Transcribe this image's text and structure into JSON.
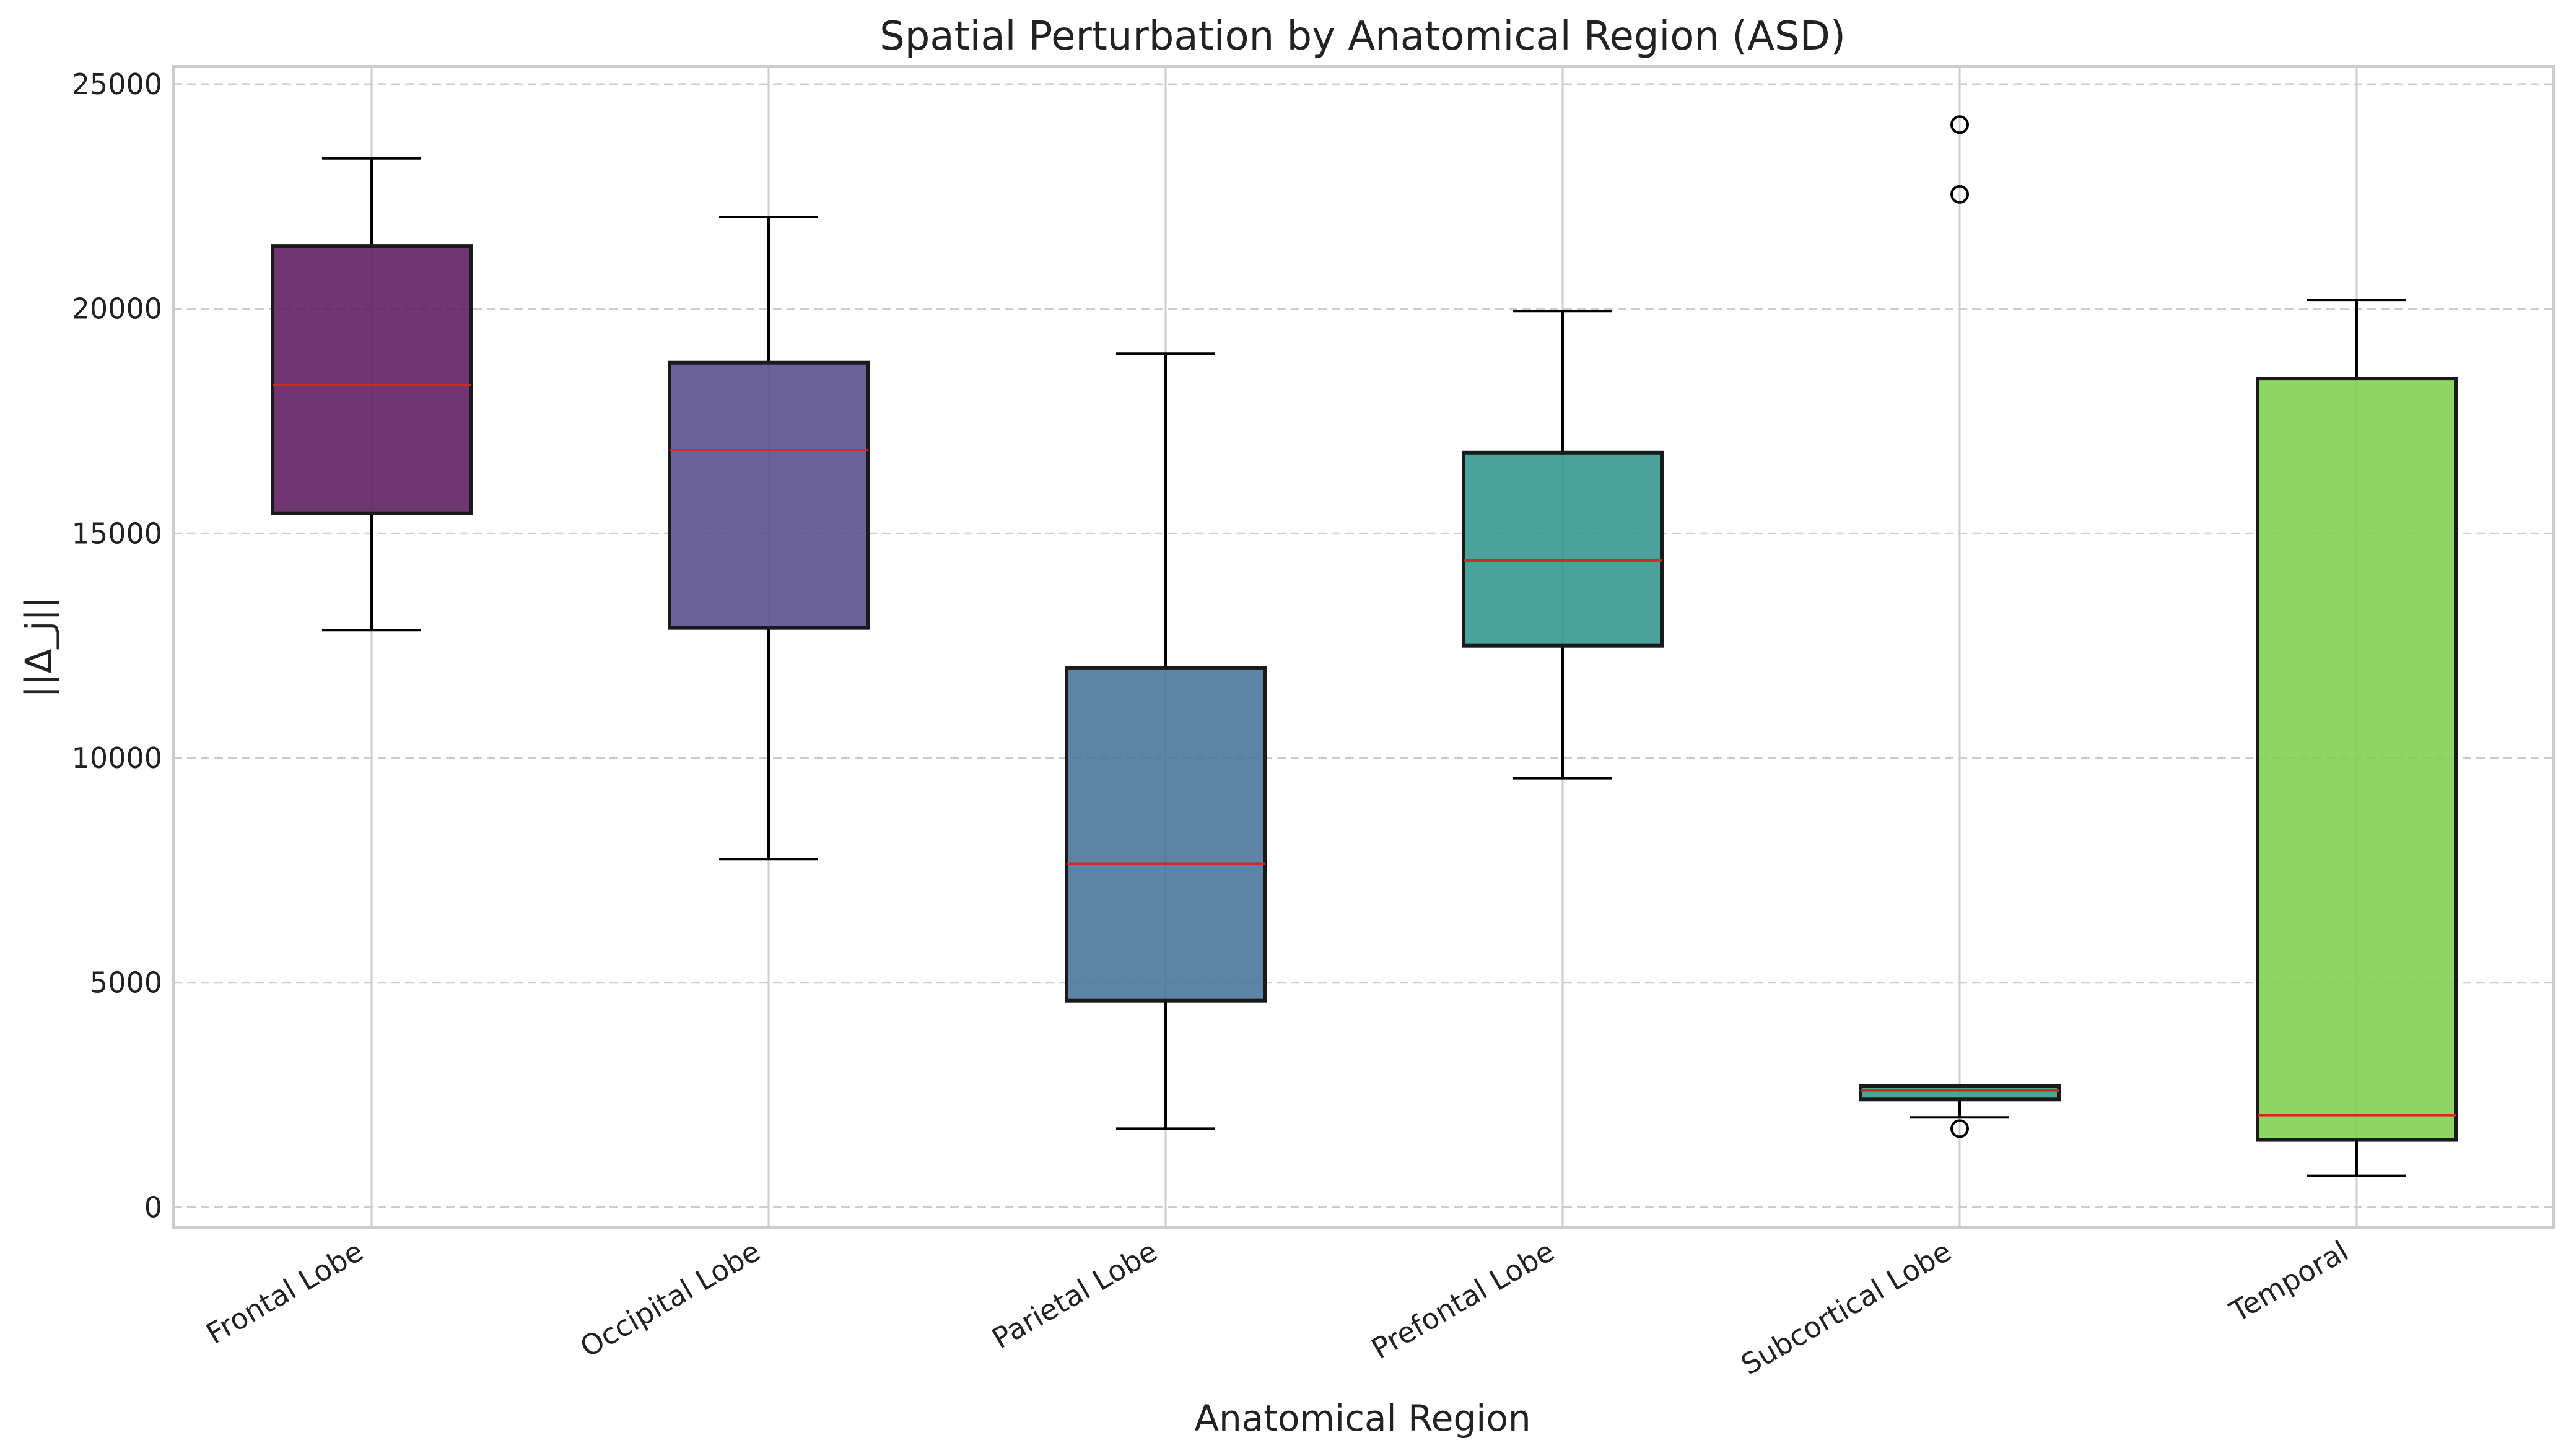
{
  "chart_data": {
    "type": "box",
    "title": "Spatial Perturbation by Anatomical Region (ASD)",
    "xlabel": "Anatomical Region",
    "ylabel": "||Δ_j||",
    "ylim": [
      -450,
      25400
    ],
    "yticks": [
      0,
      5000,
      10000,
      15000,
      20000,
      25000
    ],
    "ytick_labels": [
      "0",
      "5000",
      "10000",
      "15000",
      "20000",
      "25000"
    ],
    "grid": true,
    "median_color": "#d62728",
    "categories": [
      "Frontal Lobe",
      "Occipital Lobe",
      "Parietal Lobe",
      "Prefontal Lobe",
      "Subcortical Lobe",
      "Temporal"
    ],
    "boxes": [
      {
        "whisker_low": 12850,
        "q1": 15450,
        "median": 18300,
        "q3": 21400,
        "whisker_high": 23350,
        "outliers": [],
        "color": "#5b1a5f"
      },
      {
        "whisker_low": 7750,
        "q1": 12900,
        "median": 16850,
        "q3": 18800,
        "whisker_high": 22050,
        "outliers": [],
        "color": "#564c8e"
      },
      {
        "whisker_low": 1750,
        "q1": 4600,
        "median": 7650,
        "q3": 12000,
        "whisker_high": 19000,
        "outliers": [],
        "color": "#477397"
      },
      {
        "whisker_low": 9550,
        "q1": 12500,
        "median": 14400,
        "q3": 16800,
        "whisker_high": 19950,
        "outliers": [],
        "color": "#31958f"
      },
      {
        "whisker_low": 2000,
        "q1": 2400,
        "median": 2600,
        "q3": 2700,
        "whisker_high": 2700,
        "outliers": [
          1750,
          22550,
          24100
        ],
        "color": "#26a185"
      },
      {
        "whisker_low": 700,
        "q1": 1500,
        "median": 2050,
        "q3": 18450,
        "whisker_high": 20200,
        "outliers": [],
        "color": "#7dd04f"
      }
    ]
  }
}
